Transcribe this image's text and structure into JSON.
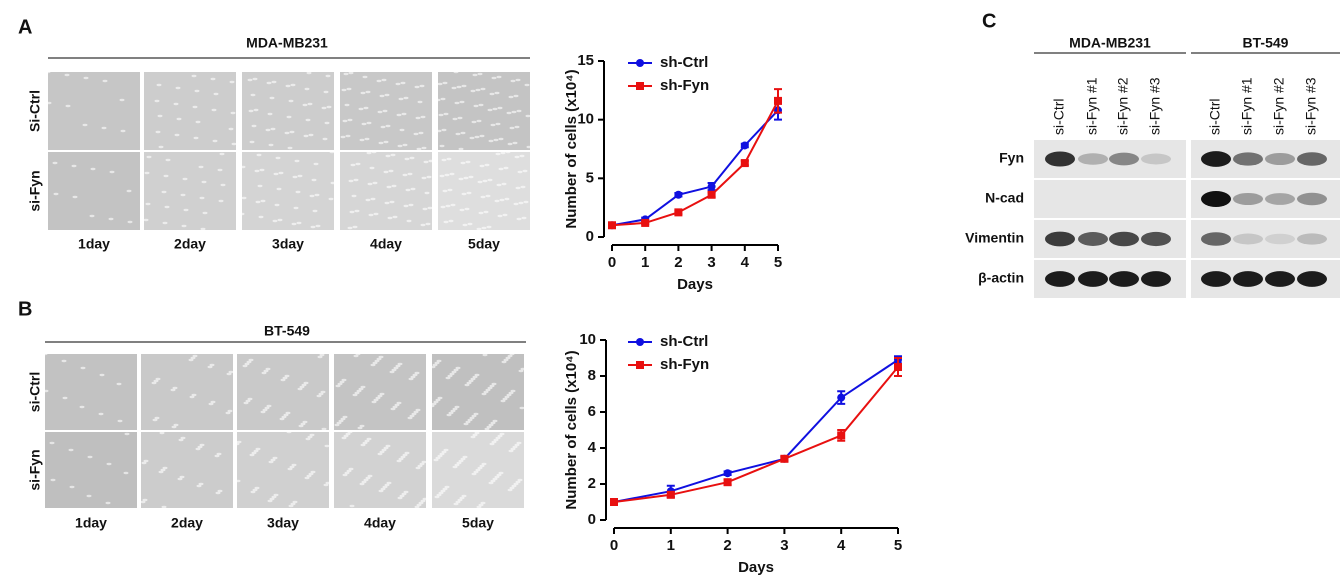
{
  "panel_a": {
    "label": "A",
    "title": "MDA-MB231",
    "rows": [
      "Si-Ctrl",
      "si-Fyn"
    ],
    "columns": [
      "1day",
      "2day",
      "3day",
      "4day",
      "5day"
    ]
  },
  "panel_b": {
    "label": "B",
    "title": "BT-549",
    "rows": [
      "si-Ctrl",
      "si-Fyn"
    ],
    "columns": [
      "1day",
      "2day",
      "3day",
      "4day",
      "5day"
    ]
  },
  "panel_c": {
    "label": "C",
    "groups": [
      "MDA-MB231",
      "BT-549"
    ],
    "lanes": [
      [
        "si-Ctrl",
        "si-Fyn #1",
        "si-Fyn #2",
        "si-Fyn #3"
      ],
      [
        "si-Ctrl",
        "si-Fyn #1",
        "si-Fyn #2",
        "si-Fyn #3"
      ]
    ],
    "proteins": [
      "Fyn",
      "N-cad",
      "Vimentin",
      "β-actin"
    ]
  },
  "chart_data": [
    {
      "type": "line",
      "x_label": "Days",
      "y_label": "Number of cells (x10⁴)",
      "x": [
        0,
        1,
        2,
        3,
        4,
        5
      ],
      "xlim": [
        0,
        5
      ],
      "xticks": [
        0,
        1,
        2,
        3,
        4,
        5
      ],
      "ylim": [
        0,
        15
      ],
      "yticks": [
        0,
        5,
        10,
        15
      ],
      "series": [
        {
          "name": "sh-Ctrl",
          "color": "#1010e0",
          "marker": "circle",
          "values": [
            1,
            1.5,
            3.6,
            4.3,
            7.8,
            10.8
          ],
          "errors": [
            0.1,
            0.15,
            0.15,
            0.3,
            0.15,
            0.8
          ]
        },
        {
          "name": "sh-Fyn",
          "color": "#e81010",
          "marker": "square",
          "values": [
            1,
            1.2,
            2.1,
            3.6,
            6.3,
            11.6
          ],
          "errors": [
            0.1,
            0.1,
            0.15,
            0.2,
            0.2,
            1.0
          ]
        }
      ]
    },
    {
      "type": "line",
      "x_label": "Days",
      "y_label": "Number of cells (x10⁴)",
      "x": [
        0,
        1,
        2,
        3,
        4,
        5
      ],
      "xlim": [
        0,
        5
      ],
      "xticks": [
        0,
        1,
        2,
        3,
        4,
        5
      ],
      "ylim": [
        0,
        10
      ],
      "yticks": [
        0,
        2,
        4,
        6,
        8,
        10
      ],
      "series": [
        {
          "name": "sh-Ctrl",
          "color": "#1010e0",
          "marker": "circle",
          "values": [
            1,
            1.6,
            2.6,
            3.4,
            6.8,
            8.9
          ],
          "errors": [
            0.1,
            0.3,
            0.1,
            0.1,
            0.35,
            0.2
          ]
        },
        {
          "name": "sh-Fyn",
          "color": "#e81010",
          "marker": "square",
          "values": [
            1,
            1.4,
            2.1,
            3.4,
            4.7,
            8.5
          ],
          "errors": [
            0.1,
            0.15,
            0.15,
            0.15,
            0.3,
            0.5
          ]
        }
      ]
    }
  ]
}
